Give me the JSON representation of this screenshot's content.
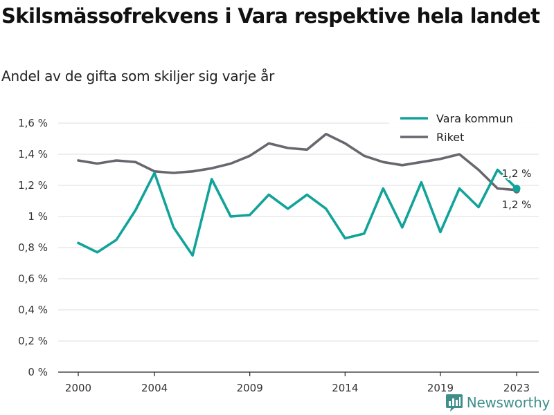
{
  "title": "Skilsmässofrekvens i Vara respektive hela landet",
  "subtitle": "Andel av de gifta som skiljer sig varje år",
  "brand": {
    "name": "Newsworthy",
    "icon": "bar-chart-icon",
    "color": "#3e8f8a"
  },
  "chart_data": {
    "type": "line",
    "x": [
      2000,
      2001,
      2002,
      2003,
      2004,
      2005,
      2006,
      2007,
      2008,
      2009,
      2010,
      2011,
      2012,
      2013,
      2014,
      2015,
      2016,
      2017,
      2018,
      2019,
      2020,
      2021,
      2022,
      2023
    ],
    "x_ticks": [
      "2000",
      "2004",
      "2009",
      "2014",
      "2019",
      "2023"
    ],
    "y_ticks": [
      "0 %",
      "0,2 %",
      "0,4 %",
      "0,6 %",
      "0,8 %",
      "1 %",
      "1,2 %",
      "1,4 %",
      "1,6 %"
    ],
    "ylim": [
      0,
      1.6
    ],
    "grid": true,
    "legend_position": "top-right",
    "series": [
      {
        "name": "Vara kommun",
        "color": "#11a399",
        "values": [
          0.83,
          0.77,
          0.85,
          1.04,
          1.28,
          0.93,
          0.75,
          1.24,
          1.0,
          1.01,
          1.14,
          1.05,
          1.14,
          1.05,
          0.86,
          0.89,
          1.18,
          0.93,
          1.22,
          0.9,
          1.18,
          1.06,
          1.3,
          1.18
        ],
        "end_label": "1,2 %"
      },
      {
        "name": "Riket",
        "color": "#68676d",
        "values": [
          1.36,
          1.34,
          1.36,
          1.35,
          1.29,
          1.28,
          1.29,
          1.31,
          1.34,
          1.39,
          1.47,
          1.44,
          1.43,
          1.53,
          1.47,
          1.39,
          1.35,
          1.33,
          1.35,
          1.37,
          1.4,
          1.3,
          1.18,
          1.17
        ],
        "end_label": "1,2 %"
      }
    ]
  }
}
